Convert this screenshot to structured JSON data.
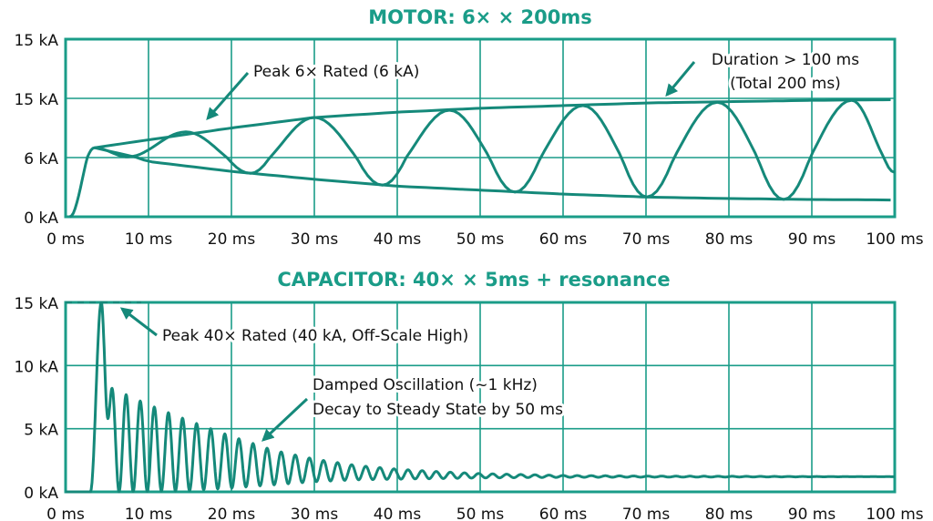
{
  "colors": {
    "accent": "#1a9c88",
    "curve": "#15897a",
    "text": "#111111"
  },
  "chart_data": [
    {
      "type": "line",
      "title": "MOTOR: 6× × 200ms",
      "xlabel": "",
      "ylabel": "",
      "xlim": [
        0,
        100
      ],
      "xticks": [
        "0 ms",
        "10 ms",
        "20 ms",
        "30 ms",
        "40 ms",
        "50 ms",
        "60 ms",
        "70 ms",
        "80 ms",
        "90 ms",
        "100 ms"
      ],
      "yticks": [
        "0 kA",
        "6 kA",
        "15 kA",
        "15 kA"
      ],
      "grid": true,
      "signal_extrema": [
        [
          0.5,
          0
        ],
        [
          3.5,
          7.5
        ],
        [
          7.5,
          6.1
        ],
        [
          14.5,
          9.9
        ],
        [
          22.3,
          4.4
        ],
        [
          30,
          12.1
        ],
        [
          38.2,
          3.2
        ],
        [
          46.3,
          13.2
        ],
        [
          54.2,
          2.5
        ],
        [
          62.4,
          13.9
        ],
        [
          70.1,
          2.0
        ],
        [
          78.6,
          14.4
        ],
        [
          86.6,
          1.75
        ],
        [
          94.8,
          14.7
        ],
        [
          100,
          4.5
        ]
      ],
      "upper_envelope": [
        [
          3.5,
          7.5
        ],
        [
          10,
          8.7
        ],
        [
          20,
          10.5
        ],
        [
          30,
          12.1
        ],
        [
          40,
          12.9
        ],
        [
          50,
          13.5
        ],
        [
          60,
          13.9
        ],
        [
          70,
          14.3
        ],
        [
          80,
          14.5
        ],
        [
          90,
          14.7
        ],
        [
          100,
          14.8
        ]
      ],
      "lower_envelope": [
        [
          3.5,
          7.5
        ],
        [
          10,
          5.6
        ],
        [
          20,
          4.6
        ],
        [
          30,
          3.8
        ],
        [
          40,
          3.1
        ],
        [
          50,
          2.7
        ],
        [
          60,
          2.3
        ],
        [
          70,
          2.0
        ],
        [
          80,
          1.85
        ],
        [
          90,
          1.75
        ],
        [
          100,
          1.7
        ]
      ],
      "annotations": [
        {
          "text": "Peak 6× Rated (6 kA)"
        },
        {
          "text": "Duration > 100 ms",
          "text2": "(Total 200 ms)"
        }
      ]
    },
    {
      "type": "line",
      "title": "CAPACITOR: 40× × 5ms + resonance",
      "xlabel": "",
      "ylabel": "",
      "xlim": [
        0,
        100
      ],
      "ylim": [
        0,
        15
      ],
      "xticks": [
        "0 ms",
        "10 ms",
        "20 ms",
        "30 ms",
        "40 ms",
        "50 ms",
        "60 ms",
        "70 ms",
        "80 ms",
        "90 ms",
        "100 ms"
      ],
      "yticks": [
        "0 kA",
        "5 kA",
        "10 kA",
        "15 kA"
      ],
      "grid": true,
      "initial_points": [
        [
          0,
          0
        ],
        [
          3,
          0
        ],
        [
          4.3,
          15
        ],
        [
          5.1,
          5.8
        ]
      ],
      "oscillation_start_ms": 5.6,
      "oscillation_period_ms": 1.7,
      "peak_envelope": [
        [
          5.6,
          8.2
        ],
        [
          10,
          6.9
        ],
        [
          15,
          5.6
        ],
        [
          20,
          4.4
        ],
        [
          25,
          3.3
        ],
        [
          30,
          2.6
        ],
        [
          35,
          2.1
        ],
        [
          40,
          1.8
        ],
        [
          45,
          1.6
        ],
        [
          50,
          1.45
        ],
        [
          60,
          1.3
        ],
        [
          70,
          1.25
        ],
        [
          100,
          1.2
        ]
      ],
      "trough_envelope": [
        [
          5.6,
          0
        ],
        [
          15,
          0.1
        ],
        [
          20,
          0.3
        ],
        [
          25,
          0.55
        ],
        [
          30,
          0.8
        ],
        [
          35,
          0.95
        ],
        [
          40,
          1.0
        ],
        [
          50,
          1.1
        ],
        [
          60,
          1.15
        ],
        [
          100,
          1.2
        ]
      ],
      "steady_state_kA": 1.2,
      "annotations": [
        {
          "text": "Peak 40× Rated (40 kA, Off-Scale High)"
        },
        {
          "text": "Damped Oscillation (~1 kHz)",
          "text2": "Decay to Steady State by 50 ms"
        }
      ]
    }
  ]
}
